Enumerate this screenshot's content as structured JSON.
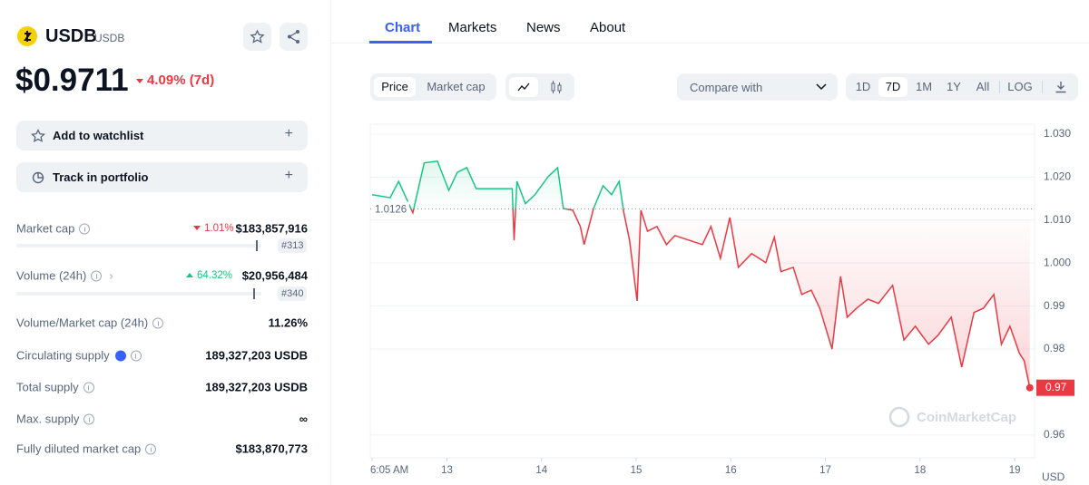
{
  "sidebar": {
    "name": "USDB",
    "symbol": "USDB",
    "price": "$0.9711",
    "change": "4.09% (7d)",
    "actions": [
      "Add to watchlist",
      "Track in portfolio"
    ],
    "stats": [
      {
        "label": "Market cap",
        "change": "1.01%",
        "value": "$183,857,916",
        "rank": "#313"
      },
      {
        "label": "Volume (24h)",
        "change": "64.32%",
        "value": "$20,956,484",
        "rank": "#340"
      },
      {
        "label": "Volume/Market cap (24h)",
        "value": "11.26%"
      },
      {
        "label": "Circulating supply",
        "value": "189,327,203 USDB"
      },
      {
        "label": "Total supply",
        "value": "189,327,203 USDB"
      },
      {
        "label": "Max. supply",
        "value": "∞"
      },
      {
        "label": "Fully diluted market cap",
        "value": "$183,870,773"
      }
    ]
  },
  "tabs": [
    "Chart",
    "Markets",
    "News",
    "About"
  ],
  "toolbar": {
    "metrics": [
      "Price",
      "Market cap"
    ],
    "compare": "Compare with",
    "ranges": [
      "1D",
      "7D",
      "1M",
      "1Y",
      "All",
      "LOG"
    ]
  },
  "chart_data": {
    "type": "line",
    "unit": "USD",
    "watermark": "CoinMarketCap",
    "reference_line": 1.0126,
    "last_label": "0.97",
    "up_color": "#16c784",
    "down_color": "#ea3943",
    "x": [
      12.21,
      12.4,
      12.49,
      12.64,
      12.76,
      12.9,
      13.02,
      13.11,
      13.21,
      13.31,
      13.69,
      13.71,
      13.74,
      13.83,
      13.93,
      14.07,
      14.17,
      14.23,
      14.33,
      14.41,
      14.45,
      14.55,
      14.65,
      14.74,
      14.82,
      14.87,
      14.93,
      15.01,
      15.05,
      15.12,
      15.22,
      15.32,
      15.41,
      15.56,
      15.7,
      15.79,
      15.89,
      15.99,
      16.08,
      16.22,
      16.37,
      16.46,
      16.53,
      16.66,
      16.75,
      16.85,
      16.94,
      17.07,
      17.16,
      17.23,
      17.33,
      17.45,
      17.56,
      17.71,
      17.83,
      17.95,
      18.09,
      18.19,
      18.33,
      18.44,
      18.57,
      18.67,
      18.78,
      18.86,
      18.95,
      19.05,
      19.1,
      19.16
    ],
    "series": [
      {
        "values": [
          1.0159,
          1.0152,
          1.019,
          1.0117,
          1.0233,
          1.0237,
          1.0169,
          1.0211,
          1.0222,
          1.0173,
          1.0173,
          1.0053,
          1.019,
          1.0138,
          1.0159,
          1.0201,
          1.0222,
          1.0127,
          1.0123,
          1.0085,
          1.0043,
          1.0127,
          1.018,
          1.0159,
          1.019,
          1.0117,
          1.0053,
          0.9912,
          1.0123,
          1.0074,
          1.0085,
          1.0043,
          1.0064,
          1.0053,
          1.0043,
          1.0085,
          1.0011,
          1.0106,
          0.999,
          1.0022,
          1.0001,
          1.006,
          0.998,
          0.999,
          0.9927,
          0.9937,
          0.9895,
          0.98,
          0.9969,
          0.9874,
          0.9895,
          0.9916,
          0.9906,
          0.9948,
          0.9821,
          0.9853,
          0.9811,
          0.9832,
          0.9874,
          0.9758,
          0.9885,
          0.9895,
          0.9927,
          0.9811,
          0.9853,
          0.979,
          0.9773,
          0.971
        ]
      }
    ],
    "xlim": [
      12.19,
      19.21
    ],
    "ylim": [
      0.9547,
      1.0323
    ],
    "xticks": [
      {
        "value": 12.21,
        "label": "6:05 AM"
      },
      13,
      14,
      15,
      16,
      17,
      18,
      19
    ],
    "yticks": [
      {
        "value": 1.03,
        "label": "1.030"
      },
      {
        "value": 1.02,
        "label": "1.020"
      },
      {
        "value": 1.01,
        "label": "1.010"
      },
      {
        "value": 1.0,
        "label": "1.000"
      },
      0.99,
      0.98,
      0.96
    ],
    "grid": true
  }
}
